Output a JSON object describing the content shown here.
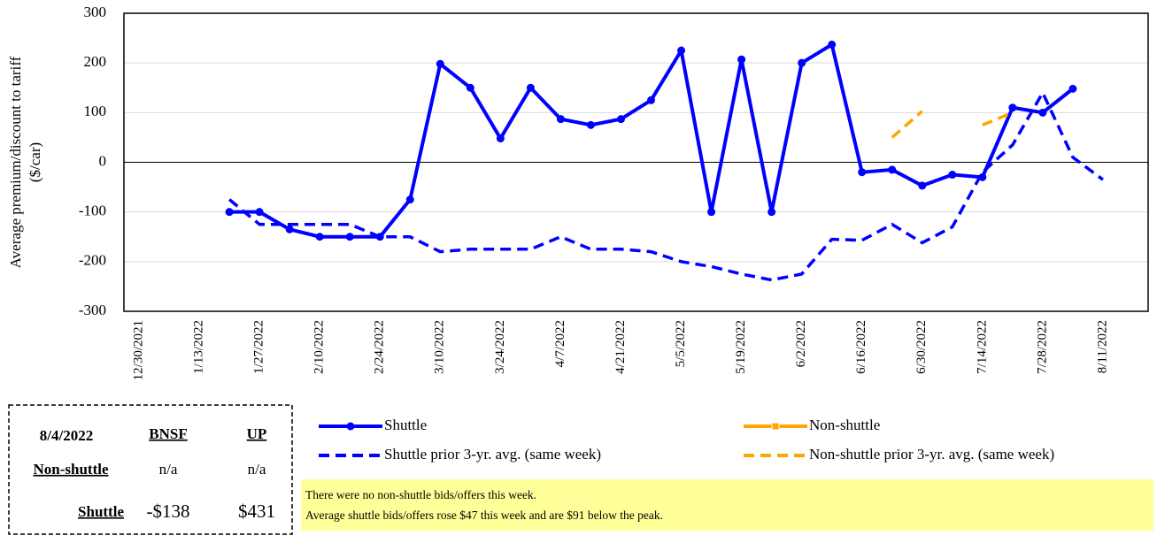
{
  "chart_data": {
    "type": "line",
    "y_label": "Average premium/discount  to tariff\n($/car)",
    "categories": [
      "12/30/2021",
      null,
      "1/13/2022",
      null,
      "1/27/2022",
      null,
      "2/10/2022",
      null,
      "2/24/2022",
      null,
      "3/10/2022",
      null,
      "3/24/2022",
      null,
      "4/7/2022",
      null,
      "4/21/2022",
      null,
      "5/5/2022",
      null,
      "5/19/2022",
      null,
      "6/2/2022",
      null,
      "6/16/2022",
      null,
      "6/30/2022",
      null,
      "7/14/2022",
      null,
      "7/28/2022",
      null,
      "8/11/2022",
      null
    ],
    "series": [
      {
        "name": "Shuttle",
        "color": "#0000ff",
        "style": "solid",
        "marker": "circle",
        "values": [
          null,
          null,
          null,
          -100,
          -100,
          -135,
          -150,
          -150,
          -150,
          -75,
          198,
          150,
          48,
          150,
          87,
          75,
          87,
          125,
          225,
          -100,
          207,
          -100,
          200,
          237,
          -20,
          -15,
          -47,
          -25,
          -30,
          110,
          100,
          148,
          null,
          null
        ]
      },
      {
        "name": "Non-shuttle",
        "color": "#ffa500",
        "style": "solid",
        "marker": "square",
        "values": [
          null,
          null,
          null,
          null,
          null,
          null,
          null,
          null,
          null,
          null,
          null,
          null,
          null,
          null,
          null,
          null,
          null,
          null,
          null,
          null,
          null,
          null,
          null,
          null,
          null,
          null,
          null,
          null,
          null,
          null,
          null,
          null,
          null,
          null
        ]
      },
      {
        "name": "Shuttle prior 3-yr. avg. (same week)",
        "color": "#0000ff",
        "style": "dashed",
        "marker": "none",
        "values": [
          null,
          null,
          null,
          -75,
          -125,
          -125,
          -125,
          -125,
          -150,
          -150,
          -180,
          -175,
          -175,
          -175,
          -150,
          -175,
          -175,
          -180,
          -200,
          -210,
          -225,
          -237,
          -225,
          -155,
          -157,
          -125,
          -162,
          -130,
          -20,
          35,
          140,
          10,
          -35,
          null
        ]
      },
      {
        "name": "Non-shuttle prior 3-yr. avg. (same week)",
        "color": "#ffa500",
        "style": "dashed",
        "marker": "none",
        "values": [
          null,
          null,
          null,
          null,
          null,
          null,
          null,
          null,
          null,
          null,
          null,
          null,
          null,
          null,
          null,
          null,
          null,
          null,
          null,
          null,
          null,
          null,
          null,
          null,
          null,
          50,
          103,
          null,
          75,
          100,
          null,
          null,
          null,
          null
        ]
      }
    ],
    "ylim": [
      -300,
      300
    ],
    "yticks": [
      -300,
      -200,
      -100,
      0,
      100,
      200,
      300
    ],
    "grid": true,
    "legend": "bottom"
  },
  "table": {
    "header": [
      "8/4/2022",
      "BNSF",
      "UP"
    ],
    "rows": [
      [
        "Non-shuttle",
        "n/a",
        "n/a"
      ],
      [
        "Shuttle",
        "-$138",
        "$431"
      ]
    ]
  },
  "note": [
    "There were no non-shuttle bids/offers this week.",
    "Average shuttle bids/offers rose $47 this week and are $91 below the peak."
  ]
}
